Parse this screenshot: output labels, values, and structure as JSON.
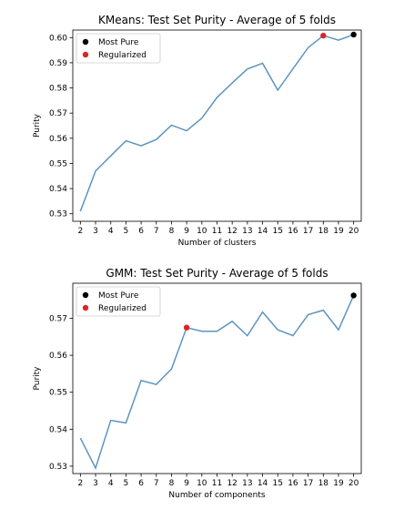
{
  "chart_data": [
    {
      "type": "line",
      "title": "KMeans: Test Set Purity - Average of 5 folds",
      "xlabel": "Number of clusters",
      "ylabel": "Purity",
      "x": [
        2,
        3,
        4,
        5,
        6,
        7,
        8,
        9,
        10,
        11,
        12,
        13,
        14,
        15,
        16,
        17,
        18,
        19,
        20
      ],
      "xticks": [
        "2",
        "3",
        "4",
        "5",
        "6",
        "7",
        "8",
        "9",
        "10",
        "11",
        "12",
        "13",
        "14",
        "15",
        "16",
        "17",
        "18",
        "19",
        "20"
      ],
      "yticks": [
        "0.53",
        "0.54",
        "0.55",
        "0.56",
        "0.57",
        "0.58",
        "0.59",
        "0.60"
      ],
      "ylim": [
        0.527,
        0.603
      ],
      "xlim": [
        1.5,
        20.5
      ],
      "series": [
        {
          "color": "#5b94c0",
          "values": [
            0.531,
            0.547,
            0.553,
            0.559,
            0.557,
            0.5595,
            0.5652,
            0.563,
            0.568,
            0.5762,
            0.582,
            0.5875,
            0.5898,
            0.5791,
            0.5876,
            0.596,
            0.6008,
            0.599,
            0.6012
          ]
        }
      ],
      "highlights": [
        {
          "label": "Most Pure",
          "x": 20,
          "y": 0.6012,
          "color": "#000000"
        },
        {
          "label": "Regularized",
          "x": 18,
          "y": 0.6008,
          "color": "#d62728"
        }
      ],
      "legend_position": "top-left",
      "grid": false
    },
    {
      "type": "line",
      "title": "GMM: Test Set Purity - Average of 5 folds",
      "xlabel": "Number of components",
      "ylabel": "Purity",
      "x": [
        2,
        3,
        4,
        5,
        6,
        7,
        8,
        9,
        10,
        11,
        12,
        13,
        14,
        15,
        16,
        17,
        18,
        19,
        20
      ],
      "xticks": [
        "2",
        "3",
        "4",
        "5",
        "6",
        "7",
        "8",
        "9",
        "10",
        "11",
        "12",
        "13",
        "14",
        "15",
        "16",
        "17",
        "18",
        "19",
        "20"
      ],
      "yticks": [
        "0.53",
        "0.54",
        "0.55",
        "0.56",
        "0.57"
      ],
      "ylim": [
        0.528,
        0.5795
      ],
      "xlim": [
        1.5,
        20.5
      ],
      "series": [
        {
          "color": "#5b94c0",
          "values": [
            0.5376,
            0.5295,
            0.5424,
            0.5417,
            0.5532,
            0.5521,
            0.5563,
            0.5675,
            0.5665,
            0.5665,
            0.5692,
            0.5653,
            0.5717,
            0.5669,
            0.5653,
            0.571,
            0.5722,
            0.5669,
            0.5762
          ]
        }
      ],
      "highlights": [
        {
          "label": "Most Pure",
          "x": 20,
          "y": 0.5762,
          "color": "#000000"
        },
        {
          "label": "Regularized",
          "x": 9,
          "y": 0.5675,
          "color": "#d62728"
        }
      ],
      "legend_position": "top-left",
      "grid": false
    }
  ]
}
